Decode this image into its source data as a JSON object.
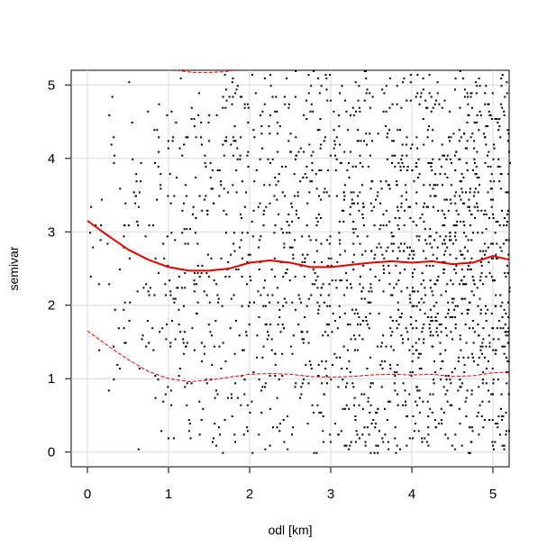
{
  "chart_data": {
    "type": "scatter",
    "title": "",
    "xlabel": "odl [km]",
    "ylabel": "semivar",
    "xlim": [
      -0.2,
      5.2
    ],
    "ylim": [
      -0.2,
      5.2
    ],
    "xticks": [
      0,
      1,
      2,
      3,
      4,
      5
    ],
    "yticks": [
      0,
      1,
      2,
      3,
      4,
      5
    ],
    "grid": true,
    "point_color": "#000000",
    "smooth_color": "#e00000",
    "series": [
      {
        "kind": "smooth",
        "style": "solid",
        "x": [
          0,
          0.25,
          0.5,
          0.75,
          1.0,
          1.25,
          1.5,
          1.75,
          2.0,
          2.25,
          2.5,
          2.75,
          3.0,
          3.25,
          3.5,
          3.75,
          4.0,
          4.25,
          4.5,
          4.75,
          5.0,
          5.2
        ],
        "y": [
          3.15,
          2.95,
          2.76,
          2.62,
          2.52,
          2.47,
          2.47,
          2.5,
          2.58,
          2.61,
          2.58,
          2.52,
          2.52,
          2.55,
          2.58,
          2.6,
          2.58,
          2.6,
          2.56,
          2.58,
          2.67,
          2.62
        ]
      },
      {
        "kind": "smooth",
        "style": "dashed",
        "x": [
          0,
          0.25,
          0.5,
          0.75,
          1.0,
          1.25,
          1.5,
          1.75,
          2.0,
          2.25,
          2.5,
          2.75,
          3.0,
          3.25,
          3.5,
          3.75,
          4.0,
          4.25,
          4.5,
          4.75,
          5.0,
          5.2
        ],
        "y": [
          1.65,
          1.45,
          1.26,
          1.1,
          1.0,
          0.96,
          0.98,
          1.02,
          1.06,
          1.07,
          1.06,
          1.03,
          1.02,
          1.03,
          1.05,
          1.06,
          1.05,
          1.06,
          1.03,
          1.04,
          1.08,
          1.09
        ]
      },
      {
        "kind": "smooth",
        "style": "dashed",
        "x": [
          1.1,
          1.3,
          1.5,
          1.7,
          1.8
        ],
        "y": [
          5.2,
          5.17,
          5.17,
          5.18,
          5.2
        ]
      }
    ]
  }
}
